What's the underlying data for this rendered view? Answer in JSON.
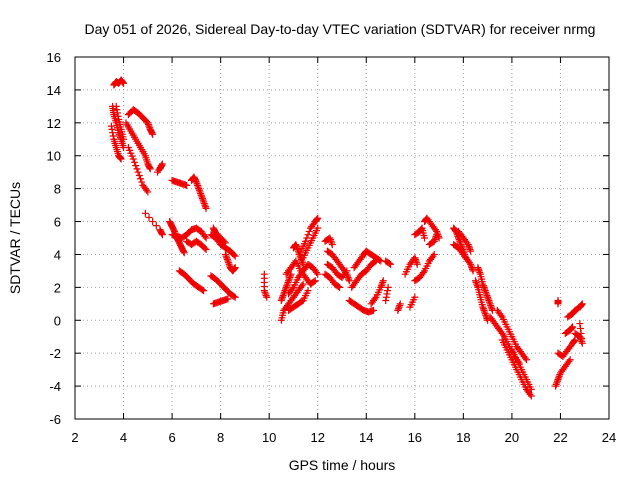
{
  "chart_data": {
    "type": "scatter",
    "title": "Day 051 of 2026, Sidereal Day-to-day VTEC variation (SDTVAR) for receiver nrmg",
    "xlabel": "GPS time / hours",
    "ylabel": "SDTVAR / TECUs",
    "xlim": [
      2,
      24
    ],
    "ylim": [
      -6,
      16
    ],
    "xticks": [
      "2",
      "4",
      "6",
      "8",
      "10",
      "12",
      "14",
      "16",
      "18",
      "20",
      "22",
      "24"
    ],
    "yticks": [
      "-6",
      "-4",
      "-2",
      "0",
      "2",
      "4",
      "6",
      "8",
      "10",
      "12",
      "14",
      "16"
    ],
    "grid": true,
    "marker": "plus",
    "color": "#ee0000",
    "tracks": [
      [
        [
          3.6,
          14.3
        ],
        [
          3.7,
          14.5
        ],
        [
          3.8,
          14.4
        ],
        [
          3.9,
          14.6
        ],
        [
          4.0,
          14.4
        ]
      ],
      [
        [
          3.55,
          13.0
        ],
        [
          3.6,
          12.5
        ],
        [
          3.7,
          12.0
        ],
        [
          3.8,
          11.4
        ],
        [
          3.9,
          11.0
        ],
        [
          4.0,
          10.5
        ]
      ],
      [
        [
          3.5,
          11.8
        ],
        [
          3.6,
          11.0
        ],
        [
          3.7,
          10.5
        ],
        [
          3.8,
          10.0
        ],
        [
          3.9,
          9.8
        ]
      ],
      [
        [
          3.7,
          13.0
        ],
        [
          3.8,
          12.2
        ],
        [
          3.9,
          11.6
        ],
        [
          4.0,
          11.0
        ]
      ],
      [
        [
          4.2,
          12.5
        ],
        [
          4.4,
          12.8
        ],
        [
          4.6,
          12.6
        ],
        [
          4.8,
          12.3
        ],
        [
          5.0,
          12.0
        ],
        [
          5.1,
          11.6
        ],
        [
          5.2,
          11.3
        ]
      ],
      [
        [
          4.1,
          12.0
        ],
        [
          4.3,
          11.5
        ],
        [
          4.5,
          11.0
        ],
        [
          4.7,
          10.5
        ],
        [
          4.9,
          10.0
        ],
        [
          5.0,
          9.5
        ],
        [
          5.1,
          9.2
        ]
      ],
      [
        [
          4.2,
          10.5
        ],
        [
          4.4,
          9.8
        ],
        [
          4.6,
          9.0
        ],
        [
          4.8,
          8.2
        ],
        [
          5.0,
          7.8
        ]
      ],
      [
        [
          5.4,
          9.0
        ],
        [
          5.6,
          9.5
        ],
        [
          5.5,
          9.2
        ]
      ],
      [
        [
          4.9,
          6.5
        ],
        [
          5.5,
          5.5
        ],
        [
          5.6,
          5.2
        ]
      ],
      [
        [
          6.0,
          8.5
        ],
        [
          6.2,
          8.4
        ],
        [
          6.4,
          8.3
        ],
        [
          6.6,
          8.2
        ]
      ],
      [
        [
          6.8,
          8.5
        ],
        [
          6.9,
          8.7
        ],
        [
          7.0,
          8.4
        ],
        [
          7.1,
          8.0
        ],
        [
          7.2,
          7.6
        ],
        [
          7.3,
          7.2
        ],
        [
          7.4,
          6.8
        ]
      ],
      [
        [
          5.9,
          6.0
        ],
        [
          6.0,
          5.7
        ],
        [
          6.1,
          5.4
        ],
        [
          6.2,
          5.0
        ],
        [
          6.3,
          4.7
        ],
        [
          6.4,
          4.4
        ],
        [
          6.5,
          4.1
        ]
      ],
      [
        [
          6.0,
          5.2
        ],
        [
          6.2,
          5.1
        ],
        [
          6.4,
          5.0
        ],
        [
          6.6,
          5.2
        ],
        [
          6.8,
          5.5
        ],
        [
          7.0,
          5.6
        ],
        [
          7.2,
          5.4
        ],
        [
          7.4,
          5.0
        ]
      ],
      [
        [
          6.6,
          4.8
        ],
        [
          6.8,
          4.6
        ],
        [
          7.0,
          4.8
        ],
        [
          7.2,
          4.6
        ],
        [
          7.4,
          4.3
        ]
      ],
      [
        [
          7.6,
          5.2
        ],
        [
          7.8,
          5.0
        ],
        [
          8.0,
          4.6
        ],
        [
          8.2,
          4.4
        ],
        [
          8.4,
          4.2
        ],
        [
          8.6,
          3.9
        ]
      ],
      [
        [
          7.7,
          5.6
        ],
        [
          7.8,
          5.3
        ],
        [
          8.0,
          5.0
        ],
        [
          8.2,
          4.7
        ]
      ],
      [
        [
          8.2,
          4.0
        ],
        [
          8.3,
          3.6
        ],
        [
          8.4,
          3.2
        ],
        [
          8.5,
          3.0
        ],
        [
          8.6,
          3.2
        ]
      ],
      [
        [
          6.3,
          3.0
        ],
        [
          6.5,
          2.8
        ],
        [
          6.7,
          2.5
        ],
        [
          6.9,
          2.2
        ],
        [
          7.1,
          2.0
        ],
        [
          7.3,
          1.8
        ]
      ],
      [
        [
          7.6,
          2.7
        ],
        [
          7.8,
          2.5
        ],
        [
          8.0,
          2.2
        ],
        [
          8.2,
          1.9
        ],
        [
          8.4,
          1.6
        ],
        [
          8.6,
          1.4
        ]
      ],
      [
        [
          7.7,
          1.0
        ],
        [
          7.9,
          1.1
        ],
        [
          8.1,
          1.2
        ],
        [
          8.3,
          1.3
        ]
      ],
      [
        [
          9.8,
          2.8
        ],
        [
          9.8,
          1.8
        ],
        [
          9.9,
          1.4
        ]
      ],
      [
        [
          10.5,
          1.2
        ],
        [
          10.6,
          1.6
        ],
        [
          10.7,
          2.0
        ],
        [
          10.8,
          2.4
        ],
        [
          10.9,
          2.8
        ]
      ],
      [
        [
          10.5,
          0.0
        ],
        [
          10.6,
          0.6
        ],
        [
          10.8,
          1.0
        ],
        [
          11.0,
          1.4
        ],
        [
          11.2,
          1.8
        ],
        [
          11.4,
          2.2
        ]
      ],
      [
        [
          10.7,
          2.8
        ],
        [
          10.9,
          3.2
        ],
        [
          11.1,
          3.6
        ],
        [
          11.3,
          3.0
        ],
        [
          11.5,
          2.6
        ],
        [
          11.7,
          2.2
        ],
        [
          11.9,
          2.4
        ]
      ],
      [
        [
          10.8,
          1.6
        ],
        [
          11.0,
          2.0
        ],
        [
          11.2,
          2.6
        ],
        [
          11.4,
          3.0
        ],
        [
          11.6,
          3.4
        ],
        [
          11.8,
          3.2
        ],
        [
          12.0,
          2.8
        ]
      ],
      [
        [
          11.0,
          4.4
        ],
        [
          11.1,
          4.6
        ],
        [
          11.2,
          4.2
        ],
        [
          11.3,
          3.8
        ],
        [
          11.4,
          3.4
        ]
      ],
      [
        [
          11.3,
          4.2
        ],
        [
          11.5,
          4.8
        ],
        [
          11.7,
          5.6
        ],
        [
          11.9,
          6.0
        ],
        [
          12.0,
          6.2
        ]
      ],
      [
        [
          11.4,
          3.8
        ],
        [
          11.6,
          4.4
        ],
        [
          11.8,
          5.0
        ],
        [
          12.0,
          5.6
        ]
      ],
      [
        [
          10.8,
          0.6
        ],
        [
          11.0,
          0.8
        ],
        [
          11.2,
          1.0
        ],
        [
          11.4,
          1.2
        ],
        [
          11.6,
          1.8
        ]
      ],
      [
        [
          12.3,
          4.8
        ],
        [
          12.5,
          5.0
        ],
        [
          12.6,
          4.6
        ]
      ],
      [
        [
          12.4,
          4.2
        ],
        [
          12.6,
          4.0
        ],
        [
          12.8,
          3.6
        ],
        [
          13.0,
          3.2
        ],
        [
          13.2,
          2.8
        ],
        [
          13.3,
          2.4
        ]
      ],
      [
        [
          12.4,
          3.4
        ],
        [
          12.6,
          3.2
        ],
        [
          12.8,
          2.8
        ],
        [
          13.0,
          2.6
        ],
        [
          13.2,
          3.0
        ]
      ],
      [
        [
          12.3,
          2.8
        ],
        [
          12.5,
          2.6
        ],
        [
          12.7,
          2.2
        ],
        [
          12.9,
          2.0
        ]
      ],
      [
        [
          13.5,
          3.2
        ],
        [
          13.7,
          3.6
        ],
        [
          13.9,
          4.0
        ],
        [
          14.0,
          4.2
        ],
        [
          14.2,
          4.0
        ],
        [
          14.4,
          3.8
        ],
        [
          14.6,
          3.6
        ]
      ],
      [
        [
          13.4,
          2.0
        ],
        [
          13.6,
          2.4
        ],
        [
          13.8,
          2.8
        ],
        [
          14.0,
          3.0
        ],
        [
          14.2,
          3.4
        ],
        [
          14.4,
          3.6
        ]
      ],
      [
        [
          13.3,
          1.2
        ],
        [
          13.5,
          1.0
        ],
        [
          13.7,
          0.8
        ],
        [
          13.9,
          0.6
        ],
        [
          14.1,
          0.5
        ],
        [
          14.3,
          0.6
        ]
      ],
      [
        [
          14.2,
          1.0
        ],
        [
          14.4,
          1.4
        ],
        [
          14.6,
          2.0
        ],
        [
          14.7,
          2.4
        ]
      ],
      [
        [
          14.8,
          3.6
        ],
        [
          15.0,
          3.4
        ]
      ],
      [
        [
          14.9,
          2.0
        ],
        [
          14.8,
          1.2
        ]
      ],
      [
        [
          15.3,
          0.6
        ],
        [
          15.4,
          1.0
        ]
      ],
      [
        [
          15.6,
          2.8
        ],
        [
          15.8,
          3.4
        ],
        [
          16.0,
          3.8
        ],
        [
          16.1,
          3.4
        ]
      ],
      [
        [
          16.0,
          2.4
        ],
        [
          16.2,
          2.6
        ],
        [
          16.4,
          3.0
        ],
        [
          16.6,
          3.6
        ],
        [
          16.8,
          4.0
        ]
      ],
      [
        [
          16.0,
          5.2
        ],
        [
          16.2,
          5.4
        ],
        [
          16.3,
          5.6
        ],
        [
          16.4,
          5.0
        ]
      ],
      [
        [
          16.4,
          6.0
        ],
        [
          16.5,
          6.2
        ],
        [
          16.7,
          5.8
        ],
        [
          16.9,
          5.4
        ],
        [
          17.0,
          5.0
        ]
      ],
      [
        [
          16.6,
          4.6
        ],
        [
          16.8,
          4.8
        ],
        [
          16.9,
          5.2
        ]
      ],
      [
        [
          16.0,
          1.4
        ],
        [
          15.8,
          0.8
        ]
      ],
      [
        [
          17.6,
          5.6
        ],
        [
          17.7,
          5.4
        ],
        [
          17.8,
          5.0
        ],
        [
          17.9,
          4.6
        ],
        [
          18.0,
          4.2
        ],
        [
          18.1,
          3.8
        ],
        [
          18.3,
          3.4
        ],
        [
          18.4,
          3.0
        ]
      ],
      [
        [
          17.6,
          4.6
        ],
        [
          17.8,
          4.4
        ],
        [
          18.0,
          4.0
        ],
        [
          18.2,
          3.6
        ]
      ],
      [
        [
          17.8,
          5.4
        ],
        [
          18.0,
          5.0
        ],
        [
          18.2,
          4.6
        ],
        [
          18.3,
          4.2
        ]
      ],
      [
        [
          18.6,
          3.2
        ],
        [
          18.7,
          2.8
        ],
        [
          18.8,
          2.2
        ],
        [
          18.9,
          1.8
        ],
        [
          19.0,
          1.4
        ],
        [
          19.1,
          1.0
        ],
        [
          19.2,
          0.6
        ]
      ],
      [
        [
          18.5,
          2.4
        ],
        [
          18.6,
          2.0
        ],
        [
          18.7,
          1.4
        ],
        [
          18.8,
          0.8
        ],
        [
          18.9,
          0.4
        ],
        [
          19.0,
          0.0
        ]
      ],
      [
        [
          19.1,
          0.2
        ],
        [
          19.3,
          -0.2
        ],
        [
          19.5,
          -0.6
        ],
        [
          19.7,
          -1.0
        ],
        [
          19.9,
          -1.6
        ],
        [
          20.1,
          -2.2
        ],
        [
          20.3,
          -2.6
        ]
      ],
      [
        [
          19.4,
          0.6
        ],
        [
          19.6,
          0.2
        ],
        [
          19.8,
          -0.4
        ],
        [
          20.0,
          -1.0
        ],
        [
          20.2,
          -1.6
        ],
        [
          20.4,
          -2.0
        ],
        [
          20.6,
          -2.4
        ]
      ],
      [
        [
          19.6,
          -1.2
        ],
        [
          19.8,
          -1.8
        ],
        [
          20.0,
          -2.4
        ],
        [
          20.2,
          -3.0
        ],
        [
          20.4,
          -3.6
        ],
        [
          20.6,
          -4.2
        ],
        [
          20.8,
          -4.6
        ]
      ],
      [
        [
          20.0,
          -1.8
        ],
        [
          20.2,
          -2.4
        ],
        [
          20.4,
          -3.0
        ],
        [
          20.6,
          -3.6
        ],
        [
          20.8,
          -4.2
        ]
      ],
      [
        [
          21.9,
          1.2
        ],
        [
          21.9,
          1.0
        ]
      ],
      [
        [
          21.9,
          -2.0
        ],
        [
          22.1,
          -2.2
        ],
        [
          22.3,
          -1.8
        ],
        [
          22.5,
          -1.4
        ],
        [
          22.6,
          -1.2
        ]
      ],
      [
        [
          22.2,
          -0.8
        ],
        [
          22.4,
          -0.6
        ],
        [
          22.5,
          -0.4
        ]
      ],
      [
        [
          21.8,
          -4.0
        ],
        [
          21.9,
          -3.6
        ],
        [
          22.0,
          -3.2
        ],
        [
          22.2,
          -2.8
        ],
        [
          22.4,
          -2.4
        ]
      ],
      [
        [
          22.3,
          0.2
        ],
        [
          22.5,
          0.4
        ],
        [
          22.6,
          0.6
        ],
        [
          22.8,
          0.8
        ],
        [
          22.9,
          1.0
        ]
      ],
      [
        [
          22.6,
          -0.8
        ],
        [
          22.8,
          -1.0
        ],
        [
          22.9,
          -1.4
        ],
        [
          22.8,
          -0.2
        ]
      ]
    ]
  }
}
